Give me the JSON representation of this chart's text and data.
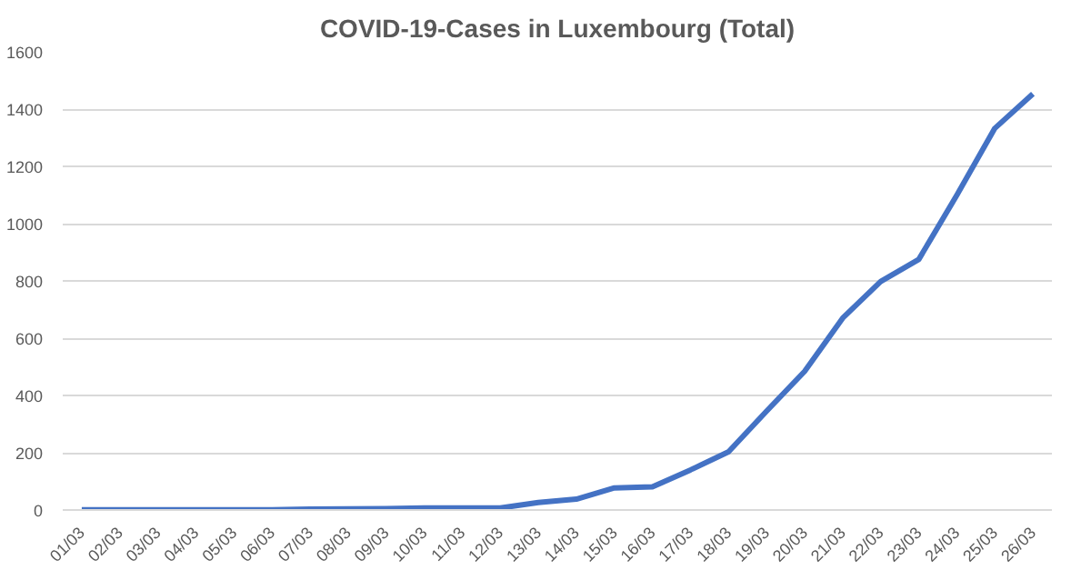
{
  "chart_data": {
    "type": "line",
    "title": "COVID-19-Cases in Luxembourg (Total)",
    "categories": [
      "01/03",
      "02/03",
      "03/03",
      "04/03",
      "05/03",
      "06/03",
      "07/03",
      "08/03",
      "09/03",
      "10/03",
      "11/03",
      "12/03",
      "13/03",
      "14/03",
      "15/03",
      "16/03",
      "17/03",
      "18/03",
      "19/03",
      "20/03",
      "21/03",
      "22/03",
      "23/03",
      "24/03",
      "25/03",
      "26/03"
    ],
    "series": [
      {
        "color": "#4472c4",
        "values": [
          1,
          1,
          1,
          1,
          1,
          1,
          3,
          4,
          5,
          7,
          7,
          7,
          26,
          38,
          77,
          81,
          140,
          203,
          345,
          484,
          670,
          798,
          875,
          1099,
          1333,
          1453
        ]
      }
    ],
    "ylim": [
      0,
      1600
    ],
    "yticks": [
      0,
      200,
      400,
      600,
      800,
      1000,
      1200,
      1400,
      1600
    ],
    "grid": "y",
    "marker": "none",
    "line_style": "solid"
  }
}
